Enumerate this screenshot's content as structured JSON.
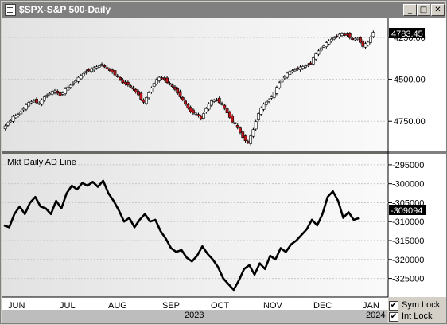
{
  "window": {
    "title": "$SPX-S&P 500-Daily",
    "min_icon": "minimize-glyph",
    "max_icon": "maximize-glyph",
    "close_icon": "close-glyph",
    "min_label": "_",
    "max_label": "□",
    "close_label": "✕"
  },
  "colors": {
    "up_candle": "#ffffff",
    "down_candle": "#c0161b",
    "ad_line": "#000000",
    "price_tag_bg": "#000000"
  },
  "price_panel": {
    "last_value": "4783.45",
    "yticks": [
      "4750.00",
      "4500.00",
      "4250.00"
    ]
  },
  "ad_panel": {
    "title": "Mkt Daily AD Line",
    "last_value": "-309094",
    "yticks": [
      "-295000",
      "-300000",
      "-305000",
      "-310000",
      "-315000",
      "-320000",
      "-325000"
    ]
  },
  "x_axis": {
    "months": [
      "JUN",
      "JUL",
      "AUG",
      "SEP",
      "OCT",
      "NOV",
      "DEC",
      "JAN"
    ],
    "years": [
      "2023",
      "2024"
    ]
  },
  "controls": {
    "sym_lock": "Sym Lock",
    "int_lock": "Int Lock",
    "sym_checked": "✔",
    "int_checked": "✔"
  },
  "chart_data": [
    {
      "type": "candlestick",
      "title": "$SPX-S&P 500-Daily",
      "ylim": [
        4080,
        4850
      ],
      "yticks": [
        4250,
        4500,
        4750
      ],
      "x_index_range": [
        0,
        159
      ],
      "points": [
        [
          0,
          4205
        ],
        [
          4,
          4240
        ],
        [
          8,
          4275
        ],
        [
          12,
          4290
        ],
        [
          16,
          4330
        ],
        [
          20,
          4360
        ],
        [
          24,
          4375
        ],
        [
          28,
          4355
        ],
        [
          32,
          4395
        ],
        [
          36,
          4420
        ],
        [
          40,
          4430
        ],
        [
          44,
          4405
        ],
        [
          48,
          4440
        ],
        [
          52,
          4465
        ],
        [
          56,
          4495
        ],
        [
          60,
          4520
        ],
        [
          64,
          4550
        ],
        [
          68,
          4560
        ],
        [
          72,
          4575
        ],
        [
          76,
          4590
        ],
        [
          80,
          4560
        ],
        [
          84,
          4545
        ],
        [
          88,
          4515
        ],
        [
          92,
          4480
        ],
        [
          96,
          4470
        ],
        [
          100,
          4440
        ],
        [
          104,
          4410
        ],
        [
          108,
          4360
        ],
        [
          112,
          4420
        ],
        [
          116,
          4480
        ],
        [
          120,
          4510
        ],
        [
          124,
          4500
        ],
        [
          128,
          4470
        ],
        [
          132,
          4440
        ],
        [
          136,
          4400
        ],
        [
          140,
          4350
        ],
        [
          144,
          4310
        ],
        [
          148,
          4295
        ],
        [
          152,
          4265
        ],
        [
          156,
          4330
        ],
        [
          160,
          4370
        ],
        [
          164,
          4380
        ],
        [
          168,
          4350
        ],
        [
          172,
          4300
        ],
        [
          176,
          4250
        ],
        [
          180,
          4210
        ],
        [
          184,
          4155
        ],
        [
          188,
          4120
        ],
        [
          192,
          4200
        ],
        [
          196,
          4300
        ],
        [
          200,
          4350
        ],
        [
          204,
          4380
        ],
        [
          208,
          4420
        ],
        [
          212,
          4480
        ],
        [
          216,
          4520
        ],
        [
          220,
          4545
        ],
        [
          224,
          4560
        ],
        [
          228,
          4570
        ],
        [
          232,
          4580
        ],
        [
          236,
          4600
        ],
        [
          240,
          4650
        ],
        [
          244,
          4690
        ],
        [
          248,
          4715
        ],
        [
          252,
          4740
        ],
        [
          256,
          4760
        ],
        [
          260,
          4770
        ],
        [
          264,
          4765
        ],
        [
          268,
          4740
        ],
        [
          272,
          4745
        ],
        [
          276,
          4700
        ],
        [
          280,
          4720
        ],
        [
          284,
          4783
        ]
      ]
    },
    {
      "type": "line",
      "title": "Mkt Daily AD Line",
      "ylim": [
        -329500,
        -292500
      ],
      "yticks": [
        -295000,
        -300000,
        -305000,
        -310000,
        -315000,
        -320000,
        -325000
      ],
      "points": [
        [
          0,
          -311000
        ],
        [
          4,
          -311500
        ],
        [
          8,
          -308000
        ],
        [
          12,
          -306000
        ],
        [
          16,
          -308000
        ],
        [
          20,
          -305000
        ],
        [
          24,
          -303500
        ],
        [
          28,
          -306000
        ],
        [
          32,
          -306500
        ],
        [
          36,
          -308000
        ],
        [
          40,
          -304500
        ],
        [
          44,
          -306500
        ],
        [
          48,
          -302500
        ],
        [
          52,
          -300500
        ],
        [
          56,
          -301500
        ],
        [
          60,
          -299800
        ],
        [
          64,
          -300500
        ],
        [
          68,
          -299500
        ],
        [
          72,
          -300800
        ],
        [
          76,
          -299200
        ],
        [
          80,
          -302500
        ],
        [
          84,
          -304500
        ],
        [
          88,
          -307000
        ],
        [
          92,
          -310000
        ],
        [
          96,
          -309000
        ],
        [
          100,
          -311500
        ],
        [
          104,
          -309500
        ],
        [
          108,
          -308000
        ],
        [
          112,
          -310000
        ],
        [
          116,
          -309500
        ],
        [
          120,
          -312500
        ],
        [
          124,
          -314500
        ],
        [
          128,
          -317000
        ],
        [
          132,
          -318000
        ],
        [
          136,
          -317500
        ],
        [
          140,
          -319500
        ],
        [
          144,
          -320500
        ],
        [
          148,
          -319000
        ],
        [
          152,
          -316500
        ],
        [
          156,
          -318500
        ],
        [
          160,
          -320000
        ],
        [
          164,
          -322000
        ],
        [
          168,
          -325000
        ],
        [
          172,
          -326500
        ],
        [
          176,
          -328000
        ],
        [
          180,
          -325500
        ],
        [
          184,
          -322500
        ],
        [
          188,
          -321500
        ],
        [
          192,
          -324000
        ],
        [
          196,
          -321000
        ],
        [
          200,
          -322500
        ],
        [
          204,
          -319000
        ],
        [
          208,
          -320000
        ],
        [
          212,
          -317000
        ],
        [
          216,
          -318000
        ],
        [
          220,
          -316000
        ],
        [
          224,
          -315000
        ],
        [
          228,
          -313500
        ],
        [
          232,
          -312000
        ],
        [
          236,
          -309500
        ],
        [
          240,
          -311000
        ],
        [
          244,
          -308000
        ],
        [
          248,
          -303500
        ],
        [
          252,
          -302000
        ],
        [
          256,
          -304500
        ],
        [
          260,
          -309000
        ],
        [
          264,
          -307500
        ],
        [
          268,
          -309500
        ],
        [
          272,
          -309094
        ]
      ]
    }
  ]
}
